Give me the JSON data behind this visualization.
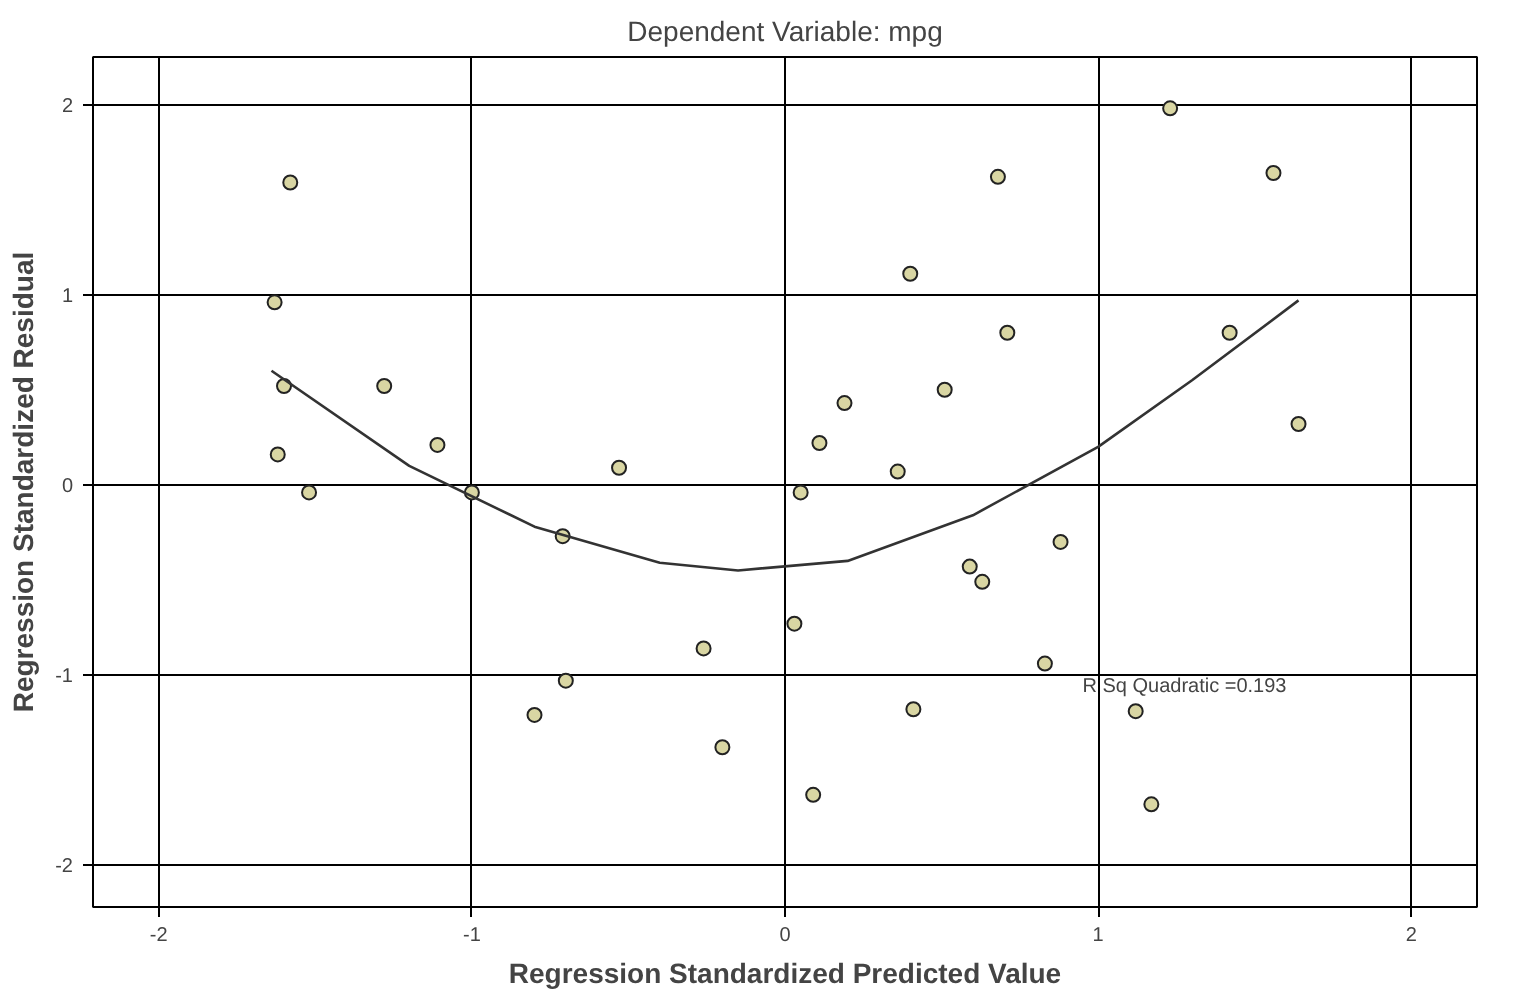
{
  "chart_data": {
    "type": "scatter",
    "title": "Dependent Variable: mpg",
    "xlabel": "Regression Standardized Predicted Value",
    "ylabel": "Regression Standardized Residual",
    "xlim": [
      -2.21,
      2.21
    ],
    "ylim": [
      -2.22,
      2.25
    ],
    "xticks": [
      -2,
      -1,
      0,
      1,
      2
    ],
    "yticks": [
      -2,
      -1,
      0,
      1,
      2
    ],
    "grid": true,
    "series": [
      {
        "marker": "circle",
        "color": "#d9d6a3",
        "x": [
          -1.63,
          -1.58,
          -1.6,
          -1.62,
          -1.52,
          -1.28,
          -1.11,
          -1.0,
          -0.71,
          -0.7,
          -0.8,
          -0.53,
          -0.26,
          -0.2,
          0.03,
          0.05,
          0.11,
          0.19,
          0.09,
          0.36,
          0.4,
          0.41,
          0.51,
          0.59,
          0.63,
          0.68,
          0.71,
          0.83,
          0.88,
          1.12,
          1.23,
          1.17,
          1.56,
          1.42,
          1.64
        ],
        "values": [
          0.96,
          1.59,
          0.52,
          0.16,
          -0.04,
          0.52,
          0.21,
          -0.04,
          -0.27,
          -1.03,
          -1.21,
          0.09,
          -0.86,
          -1.38,
          -0.73,
          -0.04,
          0.22,
          0.43,
          -1.63,
          0.07,
          1.11,
          -1.18,
          0.5,
          -0.43,
          -0.51,
          1.62,
          0.8,
          -0.94,
          -0.3,
          -1.19,
          1.98,
          -1.68,
          1.64,
          0.8,
          0.32
        ]
      },
      {
        "type": "line",
        "color": "#333333",
        "x": [
          -1.64,
          -1.2,
          -0.8,
          -0.4,
          -0.15,
          0.2,
          0.6,
          1.0,
          1.3,
          1.64
        ],
        "values": [
          0.6,
          0.1,
          -0.22,
          -0.41,
          -0.45,
          -0.4,
          -0.16,
          0.2,
          0.55,
          0.97
        ]
      }
    ],
    "annotations": [
      "R Sq Quadratic =0.193"
    ]
  }
}
